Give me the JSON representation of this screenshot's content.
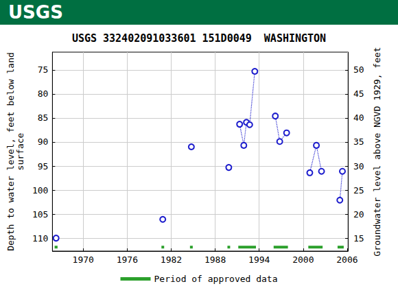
{
  "header": {
    "logo": "USGS"
  },
  "chart_data": {
    "type": "scatter",
    "title": "USGS 332402091033601 151D0049  WASHINGTON",
    "y_label": [
      "Depth to water level, feet below land",
      "surface"
    ],
    "y2_label": "Groundwater level above NGVD 1929, feet",
    "xlim": [
      1965.8,
      2006.1
    ],
    "xticks": [
      1970,
      1976,
      1982,
      1988,
      1994,
      2000,
      2006
    ],
    "ylim": [
      112.7,
      71.3
    ],
    "yticks": [
      75,
      80,
      85,
      90,
      95,
      100,
      105,
      110
    ],
    "y2lim": [
      12.3,
      53.7
    ],
    "y2ticks": [
      15,
      20,
      25,
      30,
      35,
      40,
      45,
      50
    ],
    "grid": true,
    "legend": "bottom",
    "series": [
      {
        "color": "#1c1ccc",
        "marker": "open_circle",
        "line_style": "dotted",
        "x": [
          1966.3
        ],
        "values": [
          110.0
        ]
      },
      {
        "color": "#1c1ccc",
        "marker": "open_circle",
        "line_style": "dotted",
        "x": [
          1980.85
        ],
        "values": [
          106.1
        ]
      },
      {
        "color": "#1c1ccc",
        "marker": "open_circle",
        "line_style": "dotted",
        "x": [
          1984.75
        ],
        "values": [
          91.0
        ]
      },
      {
        "color": "#1c1ccc",
        "marker": "open_circle",
        "line_style": "dotted",
        "x": [
          1989.85
        ],
        "values": [
          95.3
        ]
      },
      {
        "color": "#1c1ccc",
        "marker": "open_circle",
        "line_style": "dotted",
        "x": [
          1991.33,
          1991.9,
          1992.26,
          1992.7,
          1993.4
        ],
        "values": [
          86.3,
          90.7,
          85.9,
          86.4,
          75.3
        ]
      },
      {
        "color": "#1c1ccc",
        "marker": "open_circle",
        "line_style": "dotted",
        "x": [
          1996.2,
          1996.8,
          1997.74
        ],
        "values": [
          84.6,
          89.9,
          88.1
        ]
      },
      {
        "color": "#1c1ccc",
        "marker": "open_circle",
        "line_style": "dotted",
        "x": [
          2000.9,
          2001.8,
          2002.5
        ],
        "values": [
          96.4,
          90.7,
          96.1
        ]
      },
      {
        "color": "#1c1ccc",
        "marker": "open_circle",
        "line_style": "dotted",
        "x": [
          2005.0,
          2005.35
        ],
        "values": [
          102.1,
          96.1
        ]
      }
    ],
    "approved_periods": {
      "name": "Period of approved data",
      "color": "#2ca02c",
      "start": [
        1966.1,
        1980.67,
        1984.56,
        1989.67,
        1991.15,
        1995.97,
        2000.7,
        2004.69
      ],
      "end": [
        1966.5,
        1981.04,
        1984.94,
        1990.04,
        1993.56,
        1997.92,
        2002.65,
        2005.53
      ]
    }
  }
}
